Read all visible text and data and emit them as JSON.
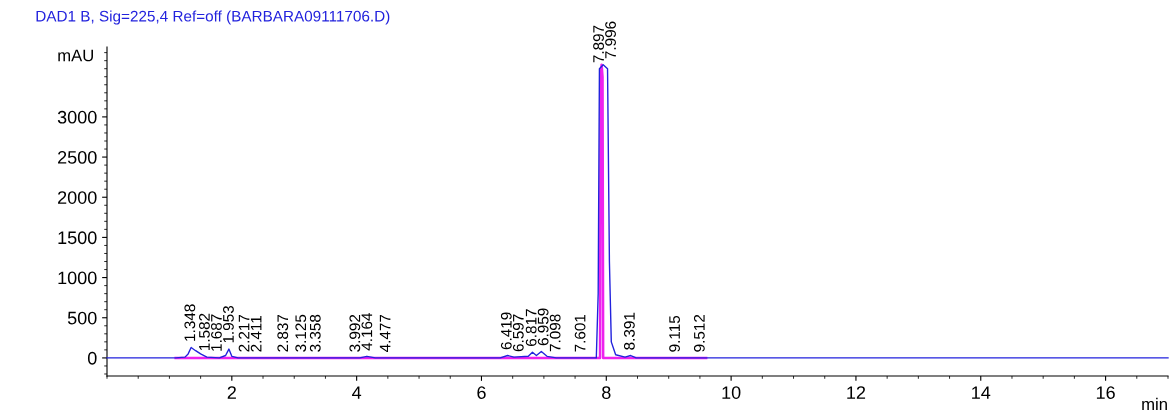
{
  "chart_data": {
    "type": "line",
    "title": "DAD1 B, Sig=225,4 Ref=off (BARBARA09111706.D)",
    "xlabel": "min",
    "ylabel": "mAU",
    "xlim": [
      0,
      17
    ],
    "ylim": [
      -225,
      3870
    ],
    "xticks": [
      2,
      4,
      6,
      8,
      10,
      12,
      14,
      16
    ],
    "yticks": [
      0,
      500,
      1000,
      1500,
      2000,
      2500,
      3000
    ],
    "grid": false,
    "legend": false,
    "marker": "none",
    "line_style": "solid",
    "series": [
      {
        "color": "#2222dd",
        "x": [
          0,
          1.1,
          1.25,
          1.3,
          1.348,
          1.42,
          1.5,
          1.6,
          1.8,
          1.9,
          1.953,
          2.0,
          2.1,
          4.05,
          4.164,
          4.3,
          6.3,
          6.419,
          6.52,
          6.75,
          6.817,
          6.88,
          6.959,
          7.05,
          7.2,
          7.84,
          7.87,
          7.89,
          7.95,
          8.02,
          8.05,
          8.08,
          8.15,
          8.3,
          8.391,
          8.48,
          17
        ],
        "values": [
          0,
          0,
          10,
          50,
          130,
          90,
          50,
          10,
          0,
          30,
          110,
          20,
          0,
          0,
          20,
          0,
          0,
          30,
          10,
          20,
          70,
          30,
          80,
          20,
          0,
          0,
          800,
          3600,
          3650,
          3600,
          1200,
          200,
          40,
          10,
          30,
          0,
          0
        ]
      },
      {
        "color": "#ee22ee",
        "x": [
          1.1,
          7.9,
          7.91,
          7.925,
          7.94,
          7.95,
          9.6
        ],
        "values": [
          0,
          0,
          3500,
          3650,
          3500,
          0,
          0
        ]
      }
    ],
    "annotations": [
      {
        "text": "1.348",
        "x": 1.348,
        "y": 130
      },
      {
        "text": "1.582",
        "x": 1.582,
        "y": 15
      },
      {
        "text": "1.687",
        "x": 1.687,
        "y": 5
      },
      {
        "text": "1.953",
        "x": 1.953,
        "y": 110
      },
      {
        "text": "2.217",
        "x": 2.217,
        "y": 0
      },
      {
        "text": "2.411",
        "x": 2.411,
        "y": 0
      },
      {
        "text": "2.837",
        "x": 2.837,
        "y": 0
      },
      {
        "text": "3.125",
        "x": 3.125,
        "y": 0
      },
      {
        "text": "3.358",
        "x": 3.358,
        "y": 0
      },
      {
        "text": "3.992",
        "x": 3.992,
        "y": 0
      },
      {
        "text": "4.164",
        "x": 4.164,
        "y": 20
      },
      {
        "text": "4.477",
        "x": 4.477,
        "y": 0
      },
      {
        "text": "6.419",
        "x": 6.419,
        "y": 30
      },
      {
        "text": "6.597",
        "x": 6.597,
        "y": 5
      },
      {
        "text": "6.817",
        "x": 6.817,
        "y": 70
      },
      {
        "text": "6.959",
        "x": 6.959,
        "y": 80
      },
      {
        "text": "7.098",
        "x": 7.098,
        "y": 5
      },
      {
        "text": "7.601",
        "x": 7.601,
        "y": 0
      },
      {
        "text": "7.897",
        "x": 7.897,
        "y": 3600
      },
      {
        "text": "7.996",
        "x": 7.996,
        "y": 3650
      },
      {
        "text": "8.391",
        "x": 8.391,
        "y": 25
      },
      {
        "text": "9.115",
        "x": 9.115,
        "y": 0
      },
      {
        "text": "9.512",
        "x": 9.512,
        "y": 0
      }
    ]
  }
}
